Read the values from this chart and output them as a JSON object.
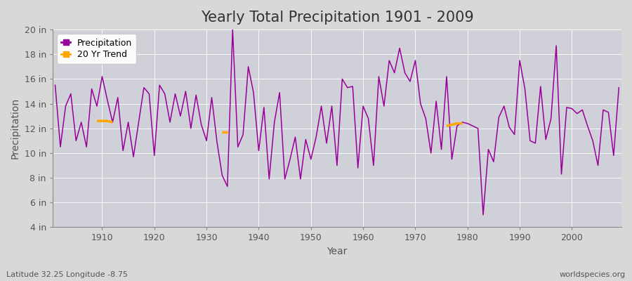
{
  "title": "Yearly Total Precipitation 1901 - 2009",
  "xlabel": "Year",
  "ylabel": "Precipitation",
  "subtitle": "Latitude 32.25 Longitude -8.75",
  "watermark": "worldspecies.org",
  "years": [
    1901,
    1902,
    1903,
    1904,
    1905,
    1906,
    1907,
    1908,
    1909,
    1910,
    1911,
    1912,
    1913,
    1914,
    1915,
    1916,
    1917,
    1918,
    1919,
    1920,
    1921,
    1922,
    1923,
    1924,
    1925,
    1926,
    1927,
    1928,
    1929,
    1930,
    1931,
    1932,
    1933,
    1934,
    1935,
    1936,
    1937,
    1938,
    1939,
    1940,
    1941,
    1942,
    1943,
    1944,
    1945,
    1946,
    1947,
    1948,
    1949,
    1950,
    1951,
    1952,
    1953,
    1954,
    1955,
    1956,
    1957,
    1958,
    1959,
    1960,
    1961,
    1962,
    1963,
    1964,
    1965,
    1966,
    1967,
    1968,
    1969,
    1970,
    1971,
    1972,
    1973,
    1974,
    1975,
    1976,
    1977,
    1978,
    1979,
    1980,
    1981,
    1982,
    1983,
    1984,
    1985,
    1986,
    1987,
    1988,
    1989,
    1990,
    1991,
    1992,
    1993,
    1994,
    1995,
    1996,
    1997,
    1998,
    1999,
    2000,
    2001,
    2002,
    2003,
    2004,
    2005,
    2006,
    2007,
    2008,
    2009
  ],
  "precip": [
    15.5,
    10.5,
    13.8,
    14.8,
    11.0,
    12.5,
    10.5,
    15.2,
    13.8,
    16.2,
    14.3,
    12.5,
    14.5,
    10.2,
    12.5,
    9.7,
    12.5,
    15.3,
    14.8,
    9.8,
    15.5,
    14.8,
    12.5,
    14.8,
    13.0,
    15.0,
    12.0,
    14.7,
    12.3,
    11.0,
    14.5,
    10.9,
    8.2,
    7.3,
    20.0,
    10.5,
    11.5,
    17.0,
    14.9,
    10.2,
    13.7,
    7.9,
    12.5,
    14.9,
    7.9,
    9.5,
    11.3,
    7.9,
    11.1,
    9.5,
    11.3,
    13.8,
    10.8,
    13.8,
    9.0,
    16.0,
    15.3,
    15.4,
    8.8,
    13.8,
    12.8,
    9.0,
    16.2,
    13.8,
    17.5,
    16.5,
    18.5,
    16.5,
    15.8,
    17.5,
    14.0,
    12.8,
    10.0,
    14.2,
    10.3,
    16.2,
    9.5,
    12.2,
    12.5,
    12.4,
    12.2,
    12.0,
    5.0,
    10.3,
    9.3,
    12.9,
    13.8,
    12.1,
    11.5,
    17.5,
    15.2,
    11.0,
    10.8,
    15.4,
    11.1,
    12.8,
    18.7,
    8.3,
    13.7,
    13.6,
    13.2,
    13.5,
    12.2,
    11.0,
    9.0,
    13.5,
    13.3,
    9.8,
    15.3
  ],
  "trend_segments": [
    {
      "years": [
        1909,
        1910,
        1911,
        1912
      ],
      "values": [
        12.6,
        12.6,
        12.6,
        12.5
      ]
    },
    {
      "years": [
        1933,
        1934
      ],
      "values": [
        11.7,
        11.7
      ]
    },
    {
      "years": [
        1976,
        1977,
        1978,
        1979
      ],
      "values": [
        12.2,
        12.3,
        12.4,
        12.4
      ]
    }
  ],
  "precip_color": "#990099",
  "trend_color": "#FFA500",
  "fig_bg_color": "#d8d8d8",
  "plot_bg_color": "#d0d0d8",
  "grid_color": "#ffffff",
  "spine_color": "#888888",
  "text_color": "#333333",
  "tick_color": "#555555",
  "ylim": [
    4,
    20
  ],
  "yticks": [
    4,
    6,
    8,
    10,
    12,
    14,
    16,
    18,
    20
  ],
  "ytick_labels": [
    "4 in",
    "6 in",
    "8 in",
    "10 in",
    "12 in",
    "14 in",
    "16 in",
    "18 in",
    "20 in"
  ],
  "xticks": [
    1910,
    1920,
    1930,
    1940,
    1950,
    1960,
    1970,
    1980,
    1990,
    2000
  ],
  "title_fontsize": 15,
  "axis_label_fontsize": 10,
  "tick_fontsize": 9,
  "legend_fontsize": 9,
  "subtitle_fontsize": 8,
  "watermark_fontsize": 8
}
